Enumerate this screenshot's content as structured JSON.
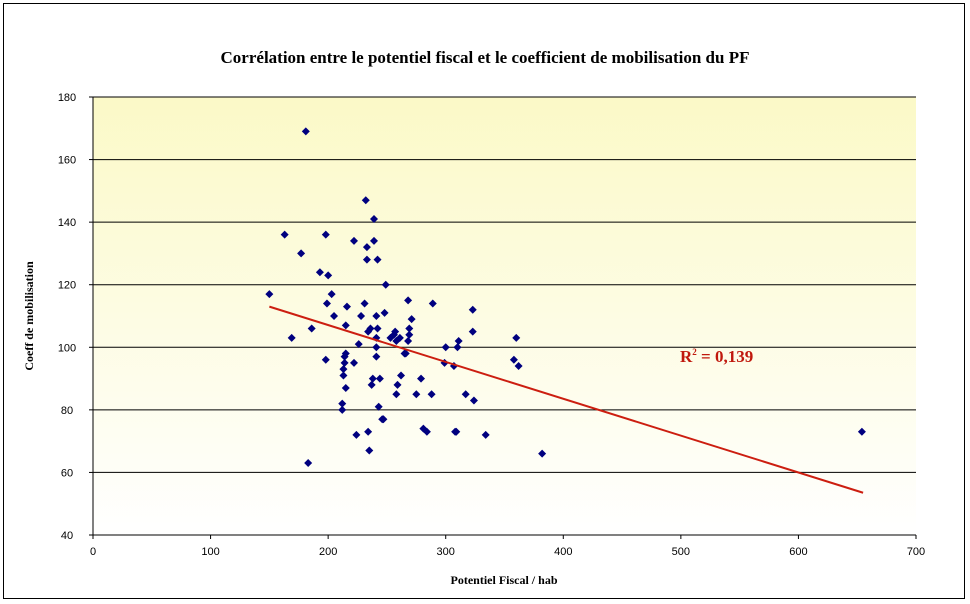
{
  "chart_data": {
    "type": "scatter",
    "title": "Corrélation entre le potentiel fiscal et le coefficient de mobilisation du PF",
    "xlabel": "Potentiel Fiscal / hab",
    "ylabel": "Coeff de mobilisation",
    "xlim": [
      0,
      700
    ],
    "ylim": [
      40,
      180
    ],
    "xticks": [
      "0",
      "100",
      "200",
      "300",
      "400",
      "500",
      "600",
      "700"
    ],
    "yticks": [
      "40",
      "60",
      "80",
      "100",
      "120",
      "140",
      "160",
      "180"
    ],
    "grid": "horizontal",
    "marker_color": "#00007f",
    "trendline_color": "#cc1e10",
    "plot_gradient": [
      "#fbf9c7",
      "#ffffff"
    ],
    "annotation": {
      "text_main": "R",
      "text_sup": "2",
      "text_rest": " = 0,139",
      "color": "#c0180d"
    },
    "trendline": {
      "x": [
        150,
        655
      ],
      "y": [
        113,
        53.5
      ]
    },
    "points": [
      [
        150,
        117
      ],
      [
        163,
        136
      ],
      [
        169,
        103
      ],
      [
        177,
        130
      ],
      [
        181,
        169
      ],
      [
        183,
        63
      ],
      [
        186,
        106
      ],
      [
        193,
        124
      ],
      [
        198,
        136
      ],
      [
        198,
        96
      ],
      [
        199,
        114
      ],
      [
        200,
        123
      ],
      [
        203,
        117
      ],
      [
        205,
        110
      ],
      [
        212,
        82
      ],
      [
        212,
        80
      ],
      [
        213,
        91
      ],
      [
        213,
        93
      ],
      [
        214,
        95
      ],
      [
        214,
        97
      ],
      [
        215,
        87
      ],
      [
        215,
        98
      ],
      [
        215,
        107
      ],
      [
        216,
        113
      ],
      [
        222,
        134
      ],
      [
        222,
        95
      ],
      [
        224,
        72
      ],
      [
        226,
        101
      ],
      [
        228,
        110
      ],
      [
        231,
        114
      ],
      [
        232,
        147
      ],
      [
        233,
        128
      ],
      [
        233,
        132
      ],
      [
        234,
        73
      ],
      [
        234,
        105
      ],
      [
        235,
        67
      ],
      [
        236,
        106
      ],
      [
        237,
        88
      ],
      [
        238,
        90
      ],
      [
        239,
        141
      ],
      [
        239,
        134
      ],
      [
        241,
        97
      ],
      [
        241,
        100
      ],
      [
        241,
        103
      ],
      [
        241,
        110
      ],
      [
        242,
        128
      ],
      [
        242,
        106
      ],
      [
        243,
        81
      ],
      [
        244,
        90
      ],
      [
        246,
        77
      ],
      [
        247,
        77
      ],
      [
        248,
        111
      ],
      [
        249,
        120
      ],
      [
        253,
        103
      ],
      [
        256,
        104
      ],
      [
        257,
        105
      ],
      [
        258,
        102
      ],
      [
        258,
        85
      ],
      [
        259,
        88
      ],
      [
        261,
        103
      ],
      [
        262,
        91
      ],
      [
        265,
        98
      ],
      [
        266,
        98
      ],
      [
        268,
        115
      ],
      [
        268,
        102
      ],
      [
        269,
        104
      ],
      [
        269,
        106
      ],
      [
        271,
        109
      ],
      [
        275,
        85
      ],
      [
        279,
        90
      ],
      [
        281,
        74
      ],
      [
        284,
        73
      ],
      [
        288,
        85
      ],
      [
        289,
        114
      ],
      [
        299,
        95
      ],
      [
        300,
        100
      ],
      [
        307,
        94
      ],
      [
        308,
        73
      ],
      [
        309,
        73
      ],
      [
        310,
        100
      ],
      [
        311,
        102
      ],
      [
        317,
        85
      ],
      [
        323,
        112
      ],
      [
        323,
        105
      ],
      [
        324,
        83
      ],
      [
        334,
        72
      ],
      [
        358,
        96
      ],
      [
        360,
        103
      ],
      [
        362,
        94
      ],
      [
        382,
        66
      ],
      [
        654,
        73
      ]
    ]
  }
}
